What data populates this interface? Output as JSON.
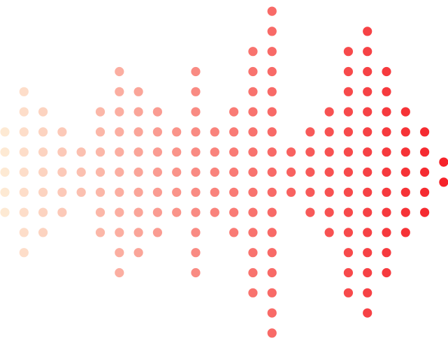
{
  "graphic": {
    "name": "dot-waveform",
    "colors": {
      "start": "#fde9d3",
      "end": "#f5232a"
    },
    "columns": [
      {
        "rows": 5
      },
      {
        "rows": 9
      },
      {
        "rows": 7
      },
      {
        "rows": 5
      },
      {
        "rows": 3
      },
      {
        "rows": 7
      },
      {
        "rows": 11
      },
      {
        "rows": 9
      },
      {
        "rows": 7
      },
      {
        "rows": 5
      },
      {
        "rows": 11
      },
      {
        "rows": 5
      },
      {
        "rows": 7
      },
      {
        "rows": 13
      },
      {
        "rows": 17
      },
      {
        "rows": 3
      },
      {
        "rows": 5
      },
      {
        "rows": 7
      },
      {
        "rows": 13
      },
      {
        "rows": 15
      },
      {
        "rows": 11
      },
      {
        "rows": 7
      },
      {
        "rows": 5
      },
      {
        "rows": 2
      }
    ]
  }
}
